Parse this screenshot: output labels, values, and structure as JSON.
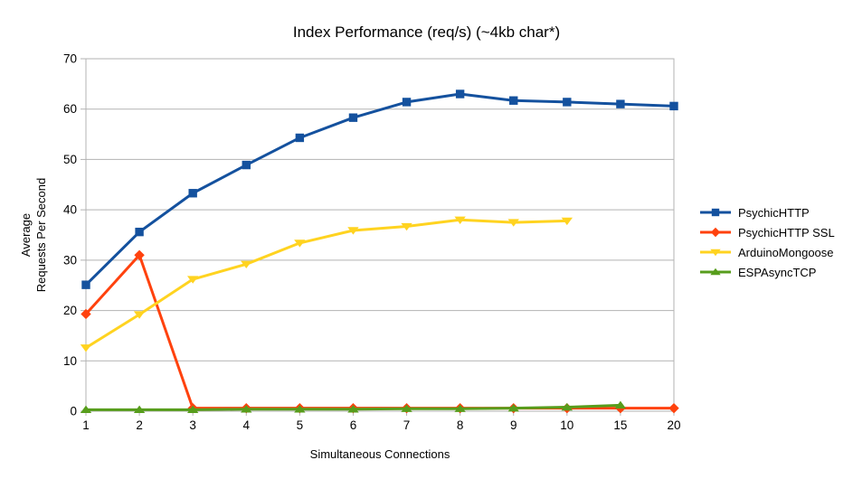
{
  "title": "Index Performance (req/s) (~4kb char*)",
  "axes": {
    "x_label": "Simultaneous Connections",
    "y_label_lines": [
      "Average",
      "Requests Per Second"
    ]
  },
  "style": {
    "grid_color": "#b3b3b3",
    "axis_color": "#b3b3b3",
    "text_color": "#000000",
    "background": "#ffffff"
  },
  "chart_data": {
    "type": "line",
    "title": "Index Performance (req/s) (~4kb char*)",
    "xlabel": "Simultaneous Connections",
    "ylabel": "Average Requests Per Second",
    "categories": [
      "1",
      "2",
      "3",
      "4",
      "5",
      "6",
      "7",
      "8",
      "9",
      "10",
      "15",
      "20"
    ],
    "y_ticks": [
      0,
      10,
      20,
      30,
      40,
      50,
      60,
      70
    ],
    "ylim": [
      0,
      70
    ],
    "grid": true,
    "legend_position": "right",
    "series": [
      {
        "name": "PsychicHTTP",
        "color": "#14519e",
        "marker": "square",
        "values": [
          25.1,
          35.6,
          43.3,
          48.9,
          54.3,
          58.3,
          61.4,
          63.0,
          61.7,
          61.4,
          61.0,
          60.6
        ]
      },
      {
        "name": "PsychicHTTP SSL",
        "color": "#ff420e",
        "marker": "diamond",
        "values": [
          19.3,
          31.0,
          0.6,
          0.6,
          0.6,
          0.6,
          0.6,
          0.6,
          0.6,
          0.6,
          0.6,
          0.6
        ]
      },
      {
        "name": "ArduinoMongoose",
        "color": "#ffd320",
        "marker": "triangle-down",
        "values": [
          12.6,
          19.2,
          26.2,
          29.2,
          33.4,
          35.9,
          36.7,
          38.0,
          37.5,
          37.8,
          null,
          null
        ]
      },
      {
        "name": "ESPAsyncTCP",
        "color": "#579d1c",
        "marker": "triangle-up",
        "values": [
          0.3,
          0.3,
          0.3,
          0.4,
          0.4,
          0.4,
          0.5,
          0.5,
          0.6,
          0.8,
          1.2,
          null
        ]
      }
    ]
  }
}
